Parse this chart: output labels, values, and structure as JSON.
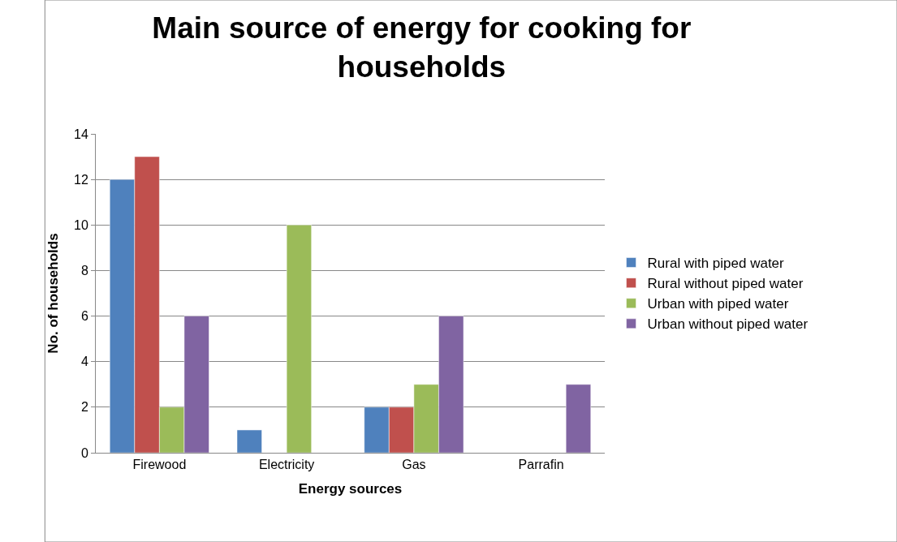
{
  "chart_data": {
    "type": "bar",
    "title": "Main source of energy for cooking for households",
    "xlabel": "Energy sources",
    "ylabel": "No. of households",
    "categories": [
      "Firewood",
      "Electricity",
      "Gas",
      "Parrafin"
    ],
    "series": [
      {
        "name": "Rural with piped water",
        "color": "#4f81bd",
        "values": [
          12,
          1,
          2,
          null
        ]
      },
      {
        "name": "Rural without piped water",
        "color": "#c0504d",
        "values": [
          13,
          null,
          2,
          null
        ]
      },
      {
        "name": "Urban with piped water",
        "color": "#9bbb59",
        "values": [
          2,
          10,
          3,
          null
        ]
      },
      {
        "name": "Urban without piped water",
        "color": "#8064a2",
        "values": [
          6,
          null,
          6,
          3
        ]
      }
    ],
    "ylim": [
      0,
      14
    ],
    "yticks": [
      0,
      2,
      4,
      6,
      8,
      10,
      12,
      14
    ],
    "grid": "y",
    "legend": "right"
  }
}
